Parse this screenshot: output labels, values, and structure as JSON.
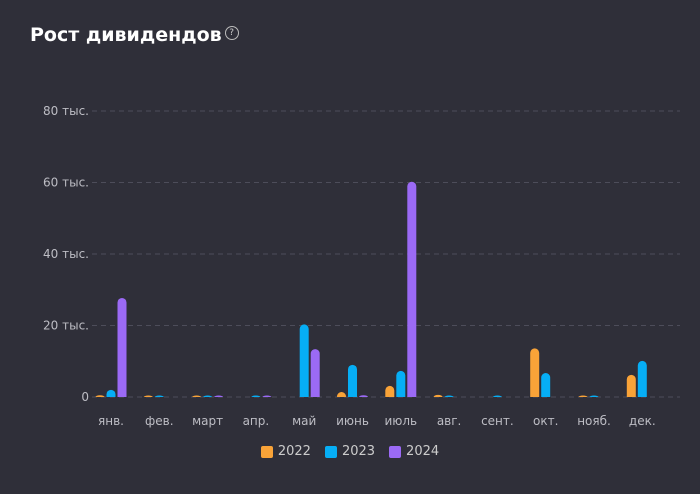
{
  "title": "Рост дивидендов",
  "help_icon": "question-circle-icon",
  "chart_data": {
    "type": "bar",
    "title": "Рост дивидендов",
    "categories": [
      "янв.",
      "фев.",
      "март",
      "апр.",
      "май",
      "июнь",
      "июль",
      "авг.",
      "сент.",
      "окт.",
      "нояб.",
      "дек."
    ],
    "ylim": [
      0,
      80000
    ],
    "yticks": [
      0,
      20000,
      40000,
      60000,
      80000
    ],
    "ytick_labels": [
      "0",
      "20 тыс.",
      "40 тыс.",
      "60 тыс.",
      "80 тыс."
    ],
    "grid": true,
    "legend": "bottom",
    "series": [
      {
        "name": "2022",
        "color": "#f9a338",
        "values": [
          500,
          300,
          150,
          0,
          0,
          1400,
          3100,
          600,
          0,
          13600,
          200,
          6200
        ]
      },
      {
        "name": "2023",
        "color": "#06aef5",
        "values": [
          2000,
          200,
          150,
          150,
          20300,
          9000,
          7300,
          200,
          150,
          6700,
          200,
          10100
        ]
      },
      {
        "name": "2024",
        "color": "#9b6af5",
        "values": [
          27700,
          0,
          150,
          150,
          13400,
          500,
          60200,
          0,
          0,
          0,
          0,
          0
        ]
      }
    ]
  }
}
